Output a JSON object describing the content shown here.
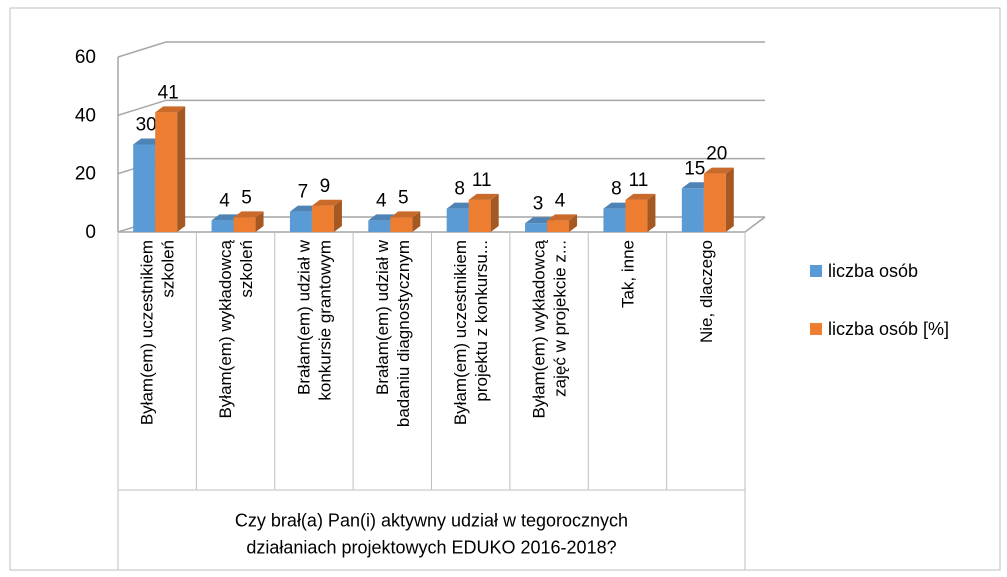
{
  "chart_data": {
    "type": "bar3d",
    "x_label": "Czy brał(a) Pan(i) aktywny udział w tegorocznych\ndziałaniach projektowych EDUKO 2016-2018?",
    "categories": [
      "Byłam(em) uczestnikiem\nszkoleń",
      "Byłam(em) wykładowcą\nszkoleń",
      "Brałam(em) udział w\nkonkursie grantowym",
      "Brałam(em) udział w\nbadaniu diagnostycznym",
      "Byłam(em) uczestnikiem\nprojektu z konkursu...",
      "Byłam(em) wykładowcą\nzajęć w projekcie z...",
      "Tak, inne",
      "Nie, dlaczego"
    ],
    "series": [
      {
        "name": "liczba osób",
        "color": "#5b9bd5",
        "values": [
          30,
          4,
          7,
          4,
          8,
          3,
          8,
          15
        ]
      },
      {
        "name": "liczba osób [%]",
        "color": "#ed7d31",
        "values": [
          41,
          5,
          9,
          5,
          11,
          4,
          11,
          20
        ]
      }
    ],
    "ylim": [
      0,
      60
    ],
    "yticks": [
      0,
      20,
      40,
      60
    ],
    "grid": true,
    "legend": "right"
  }
}
